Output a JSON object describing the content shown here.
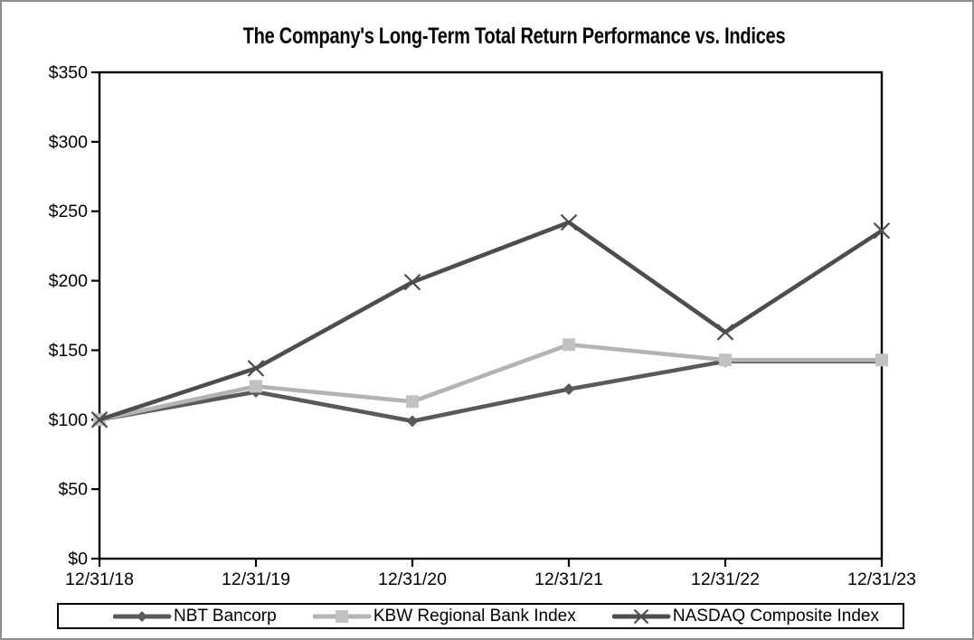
{
  "chart_data": {
    "type": "line",
    "title": "The Company's Long-Term Total Return Performance vs. Indices",
    "categories": [
      "12/31/18",
      "12/31/19",
      "12/31/20",
      "12/31/21",
      "12/31/22",
      "12/31/23"
    ],
    "series": [
      {
        "name": "NBT Bancorp",
        "marker": "diamond",
        "color": "#595959",
        "marker_color": "#595959",
        "values": [
          100,
          120,
          99,
          122,
          142,
          142
        ]
      },
      {
        "name": "KBW Regional Bank Index",
        "marker": "square",
        "color": "#b3b3b3",
        "marker_color": "#c2c2c2",
        "values": [
          100,
          124,
          113,
          154,
          143,
          143
        ]
      },
      {
        "name": "NASDAQ Composite Index",
        "marker": "x",
        "color": "#4d4d4d",
        "marker_color": "#4d4d4d",
        "values": [
          100,
          137,
          199,
          242,
          163,
          236
        ]
      }
    ],
    "y_axis": {
      "min": 0,
      "max": 350,
      "step": 50,
      "tick_labels": [
        "$0",
        "$50",
        "$100",
        "$150",
        "$200",
        "$250",
        "$300",
        "$350"
      ]
    },
    "x_axis_label": "",
    "y_axis_label": "",
    "grid": false,
    "legend_position": "bottom",
    "colors": {
      "axis": "#000000",
      "text": "#000000",
      "frame_border": "#8f8f8f",
      "background": "#ffffff"
    }
  }
}
